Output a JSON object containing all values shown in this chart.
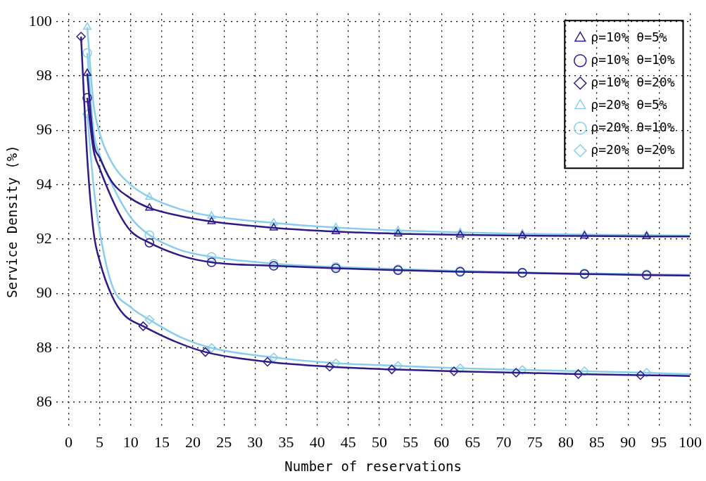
{
  "chart_data": {
    "type": "line",
    "xlabel": "Number of reservations",
    "ylabel": "Service Density (%)",
    "xlim": [
      -2,
      100
    ],
    "ylim": [
      85,
      100.3
    ],
    "xticks": [
      0,
      5,
      10,
      15,
      20,
      25,
      30,
      35,
      40,
      45,
      50,
      55,
      60,
      65,
      70,
      75,
      80,
      85,
      90,
      95,
      100
    ],
    "yticks": [
      86,
      88,
      90,
      92,
      94,
      96,
      98,
      100
    ],
    "grid": true,
    "legend": "top right",
    "line_style": "solid",
    "series": [
      {
        "name": "ρ=10% θ=5%",
        "color": "#2e1a87",
        "marker": "triangle",
        "x": [
          3,
          4,
          5,
          7,
          10,
          13,
          18,
          23,
          33,
          43,
          53,
          63,
          73,
          83,
          93,
          100
        ],
        "values": [
          98.1,
          95.6,
          95.0,
          94.1,
          93.5,
          93.15,
          92.85,
          92.65,
          92.42,
          92.28,
          92.2,
          92.16,
          92.13,
          92.12,
          92.1,
          92.1
        ]
      },
      {
        "name": "ρ=10% θ=10%",
        "color": "#2e1a87",
        "marker": "circle",
        "x": [
          3,
          4,
          5,
          8,
          10,
          13,
          18,
          23,
          33,
          43,
          53,
          63,
          73,
          83,
          93,
          100
        ],
        "values": [
          97.2,
          95.3,
          94.6,
          93.0,
          92.3,
          91.87,
          91.4,
          91.15,
          91.02,
          90.93,
          90.86,
          90.8,
          90.76,
          90.72,
          90.68,
          90.66
        ]
      },
      {
        "name": "ρ=10% θ=20%",
        "color": "#2e1a87",
        "marker": "diamond",
        "x": [
          2,
          3,
          4,
          5,
          7,
          9,
          12,
          17,
          22,
          32,
          42,
          52,
          62,
          72,
          82,
          92,
          100
        ],
        "values": [
          99.45,
          95.0,
          92.3,
          91.2,
          89.9,
          89.2,
          88.8,
          88.25,
          87.85,
          87.49,
          87.31,
          87.21,
          87.14,
          87.09,
          87.04,
          87.0,
          86.97
        ]
      },
      {
        "name": "ρ=20% θ=5%",
        "color": "#87ceeb",
        "marker": "triangle",
        "x": [
          3,
          4,
          5,
          7,
          10,
          13,
          18,
          23,
          33,
          43,
          53,
          63,
          73,
          83,
          93,
          100
        ],
        "values": [
          99.8,
          97.0,
          95.9,
          94.8,
          94.0,
          93.55,
          93.1,
          92.85,
          92.6,
          92.43,
          92.32,
          92.25,
          92.2,
          92.17,
          92.15,
          92.13
        ]
      },
      {
        "name": "ρ=20% θ=10%",
        "color": "#87ceeb",
        "marker": "circle",
        "x": [
          3,
          4,
          5,
          7,
          10,
          13,
          18,
          23,
          33,
          43,
          53,
          63,
          73,
          83,
          93,
          100
        ],
        "values": [
          98.85,
          96.0,
          95.1,
          94.0,
          92.8,
          92.15,
          91.6,
          91.35,
          91.1,
          90.98,
          90.9,
          90.83,
          90.78,
          90.74,
          90.71,
          90.69
        ]
      },
      {
        "name": "ρ=20% θ=20%",
        "color": "#87ceeb",
        "marker": "diamond",
        "x": [
          3,
          4,
          5,
          7,
          10,
          13,
          18,
          23,
          33,
          43,
          53,
          63,
          73,
          83,
          93,
          100
        ],
        "values": [
          96.6,
          94.0,
          92.3,
          90.3,
          89.5,
          89.04,
          88.4,
          88.0,
          87.65,
          87.44,
          87.34,
          87.25,
          87.19,
          87.14,
          87.09,
          87.03
        ]
      }
    ]
  }
}
